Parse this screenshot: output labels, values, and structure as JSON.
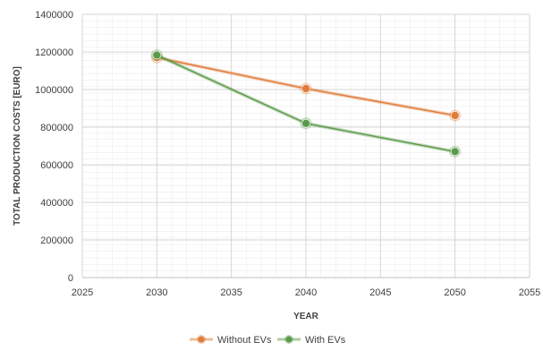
{
  "chart_data": {
    "type": "line",
    "title": "",
    "xlabel": "YEAR",
    "ylabel": "TOTAL PRODUCTION COSTS [EURO]",
    "xlim": [
      2025,
      2055
    ],
    "ylim": [
      0,
      1400000
    ],
    "xticks": [
      2025,
      2030,
      2035,
      2040,
      2045,
      2050,
      2055
    ],
    "yticks": [
      0,
      200000,
      400000,
      600000,
      800000,
      1000000,
      1200000,
      1400000
    ],
    "grid": true,
    "legend": "bottom",
    "series": [
      {
        "name": "Without EVs",
        "color": "#E07B39",
        "x": [
          2030,
          2040,
          2050
        ],
        "y": [
          1170000,
          1005000,
          862000
        ]
      },
      {
        "name": "With EVs",
        "color": "#5B9A4A",
        "x": [
          2030,
          2040,
          2050
        ],
        "y": [
          1183000,
          820000,
          670000
        ]
      }
    ]
  }
}
